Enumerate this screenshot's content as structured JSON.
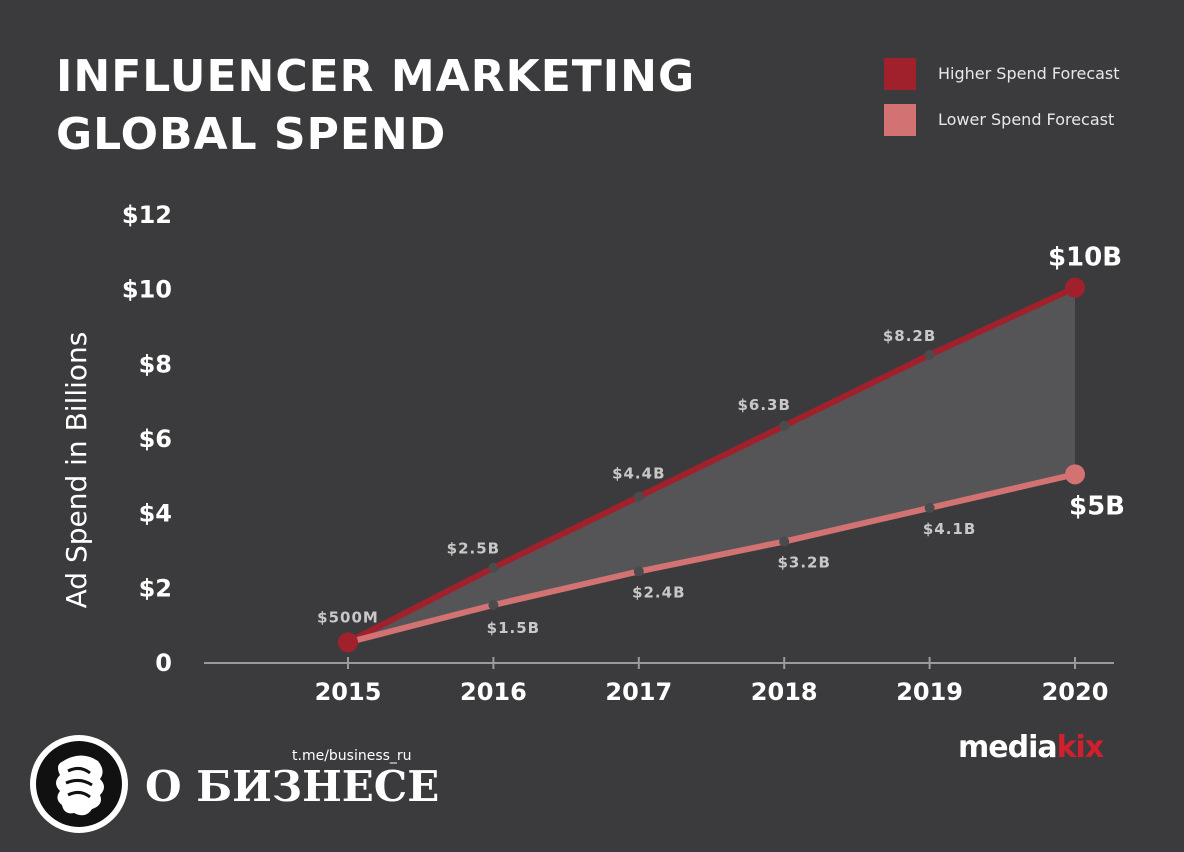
{
  "chart_data": {
    "type": "line",
    "title_lines": [
      "INFLUENCER MARKETING",
      "GLOBAL SPEND"
    ],
    "ylabel": "Ad Spend in Billions",
    "xlabel": "",
    "x": [
      "2015",
      "2016",
      "2017",
      "2018",
      "2019",
      "2020"
    ],
    "ylim": [
      0,
      12
    ],
    "yticks": [
      0,
      2,
      4,
      6,
      8,
      10,
      12
    ],
    "ytick_labels": [
      "0",
      "$2",
      "$4",
      "$6",
      "$8",
      "$10",
      "$12"
    ],
    "legend_position": "top-right",
    "area_between_series": true,
    "series": [
      {
        "name": "Higher Spend Forecast",
        "color": "#a0212c",
        "values": [
          0.5,
          2.5,
          4.4,
          6.3,
          8.2,
          10
        ],
        "point_labels": [
          "$500M",
          "$2.5B",
          "$4.4B",
          "$6.3B",
          "$8.2B",
          "$10B"
        ]
      },
      {
        "name": "Lower Spend Forecast",
        "color": "#d37272",
        "values": [
          0.5,
          1.5,
          2.4,
          3.2,
          4.1,
          5
        ],
        "point_labels": [
          "",
          "$1.5B",
          "$2.4B",
          "$3.2B",
          "$4.1B",
          "$5B"
        ]
      }
    ]
  },
  "brand": {
    "part1": "media",
    "part2": "kix"
  },
  "watermark": {
    "url": "t.me/business_ru",
    "name": "О БИЗНЕСЕ"
  }
}
